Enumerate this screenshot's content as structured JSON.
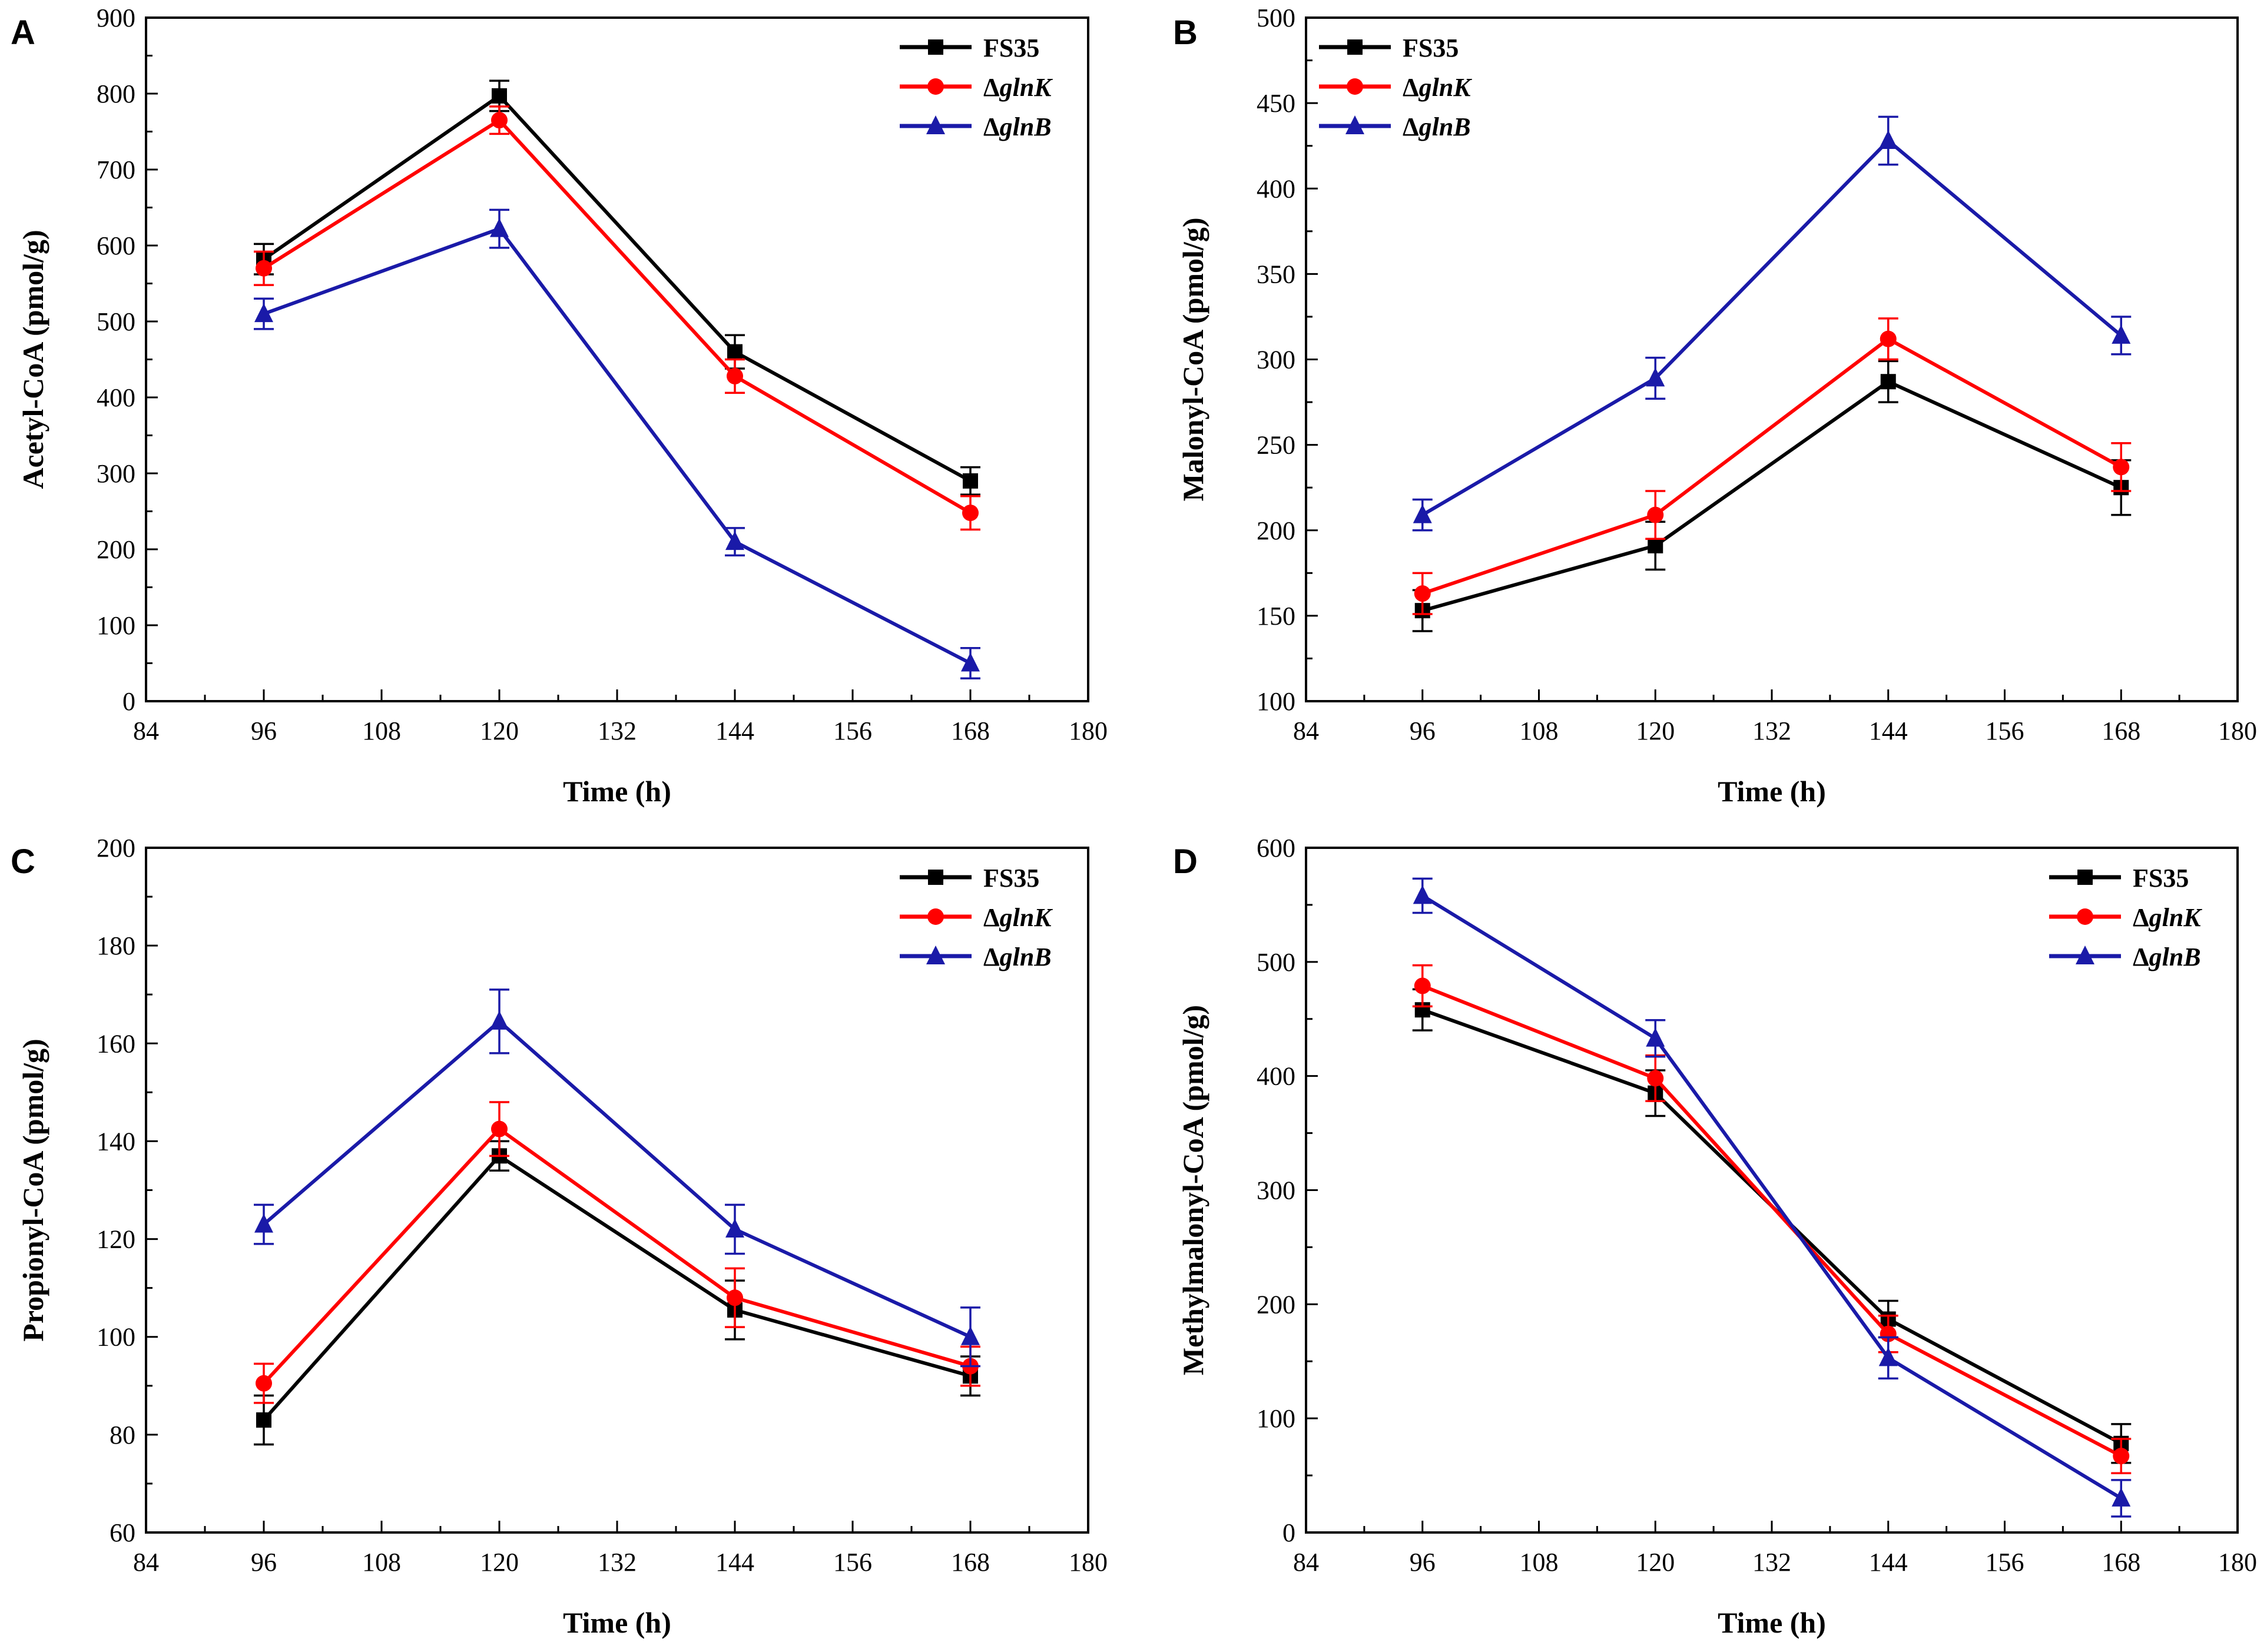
{
  "colors": {
    "FS35": "#000000",
    "glnK": "#ff0000",
    "glnB": "#1a1aa8",
    "axis": "#000000"
  },
  "chart_data": [
    {
      "panel": "A",
      "type": "line",
      "xlabel": "Time (h)",
      "ylabel": "Acetyl-CoA (pmol/g)",
      "xlim": [
        84,
        180
      ],
      "ylim": [
        0,
        900
      ],
      "xticks": [
        84,
        96,
        108,
        120,
        132,
        144,
        156,
        168,
        180
      ],
      "yticks": [
        0,
        100,
        200,
        300,
        400,
        500,
        600,
        700,
        800,
        900
      ],
      "x": [
        96,
        120,
        144,
        168
      ],
      "legend_position": "top-right",
      "series": [
        {
          "key": "FS35",
          "name": "FS35",
          "prefix": "",
          "italic": "",
          "marker": "square",
          "values": [
            582,
            797,
            460,
            290
          ],
          "errors": [
            20,
            20,
            22,
            18
          ]
        },
        {
          "key": "glnK",
          "name": "ΔglnK",
          "prefix": "Δ",
          "italic": "glnK",
          "marker": "circle",
          "values": [
            570,
            765,
            428,
            248
          ],
          "errors": [
            22,
            18,
            22,
            22
          ]
        },
        {
          "key": "glnB",
          "name": "ΔglnB",
          "prefix": "Δ",
          "italic": "glnB",
          "marker": "triangle",
          "values": [
            510,
            622,
            210,
            50
          ],
          "errors": [
            20,
            25,
            18,
            20
          ]
        }
      ]
    },
    {
      "panel": "B",
      "type": "line",
      "xlabel": "Time (h)",
      "ylabel": "Malonyl-CoA (pmol/g)",
      "xlim": [
        84,
        180
      ],
      "ylim": [
        100,
        500
      ],
      "xticks": [
        84,
        96,
        108,
        120,
        132,
        144,
        156,
        168,
        180
      ],
      "yticks": [
        100,
        150,
        200,
        250,
        300,
        350,
        400,
        450,
        500
      ],
      "x": [
        96,
        120,
        144,
        168
      ],
      "legend_position": "top-left",
      "series": [
        {
          "key": "FS35",
          "name": "FS35",
          "prefix": "",
          "italic": "",
          "marker": "square",
          "values": [
            153,
            191,
            287,
            225
          ],
          "errors": [
            12,
            14,
            12,
            16
          ]
        },
        {
          "key": "glnK",
          "name": "ΔglnK",
          "prefix": "Δ",
          "italic": "glnK",
          "marker": "circle",
          "values": [
            163,
            209,
            312,
            237
          ],
          "errors": [
            12,
            14,
            12,
            14
          ]
        },
        {
          "key": "glnB",
          "name": "ΔglnB",
          "prefix": "Δ",
          "italic": "glnB",
          "marker": "triangle",
          "values": [
            209,
            289,
            428,
            314
          ],
          "errors": [
            9,
            12,
            14,
            11
          ]
        }
      ]
    },
    {
      "panel": "C",
      "type": "line",
      "xlabel": "Time (h)",
      "ylabel": "Propionyl-CoA (pmol/g)",
      "xlim": [
        84,
        180
      ],
      "ylim": [
        60,
        200
      ],
      "xticks": [
        84,
        96,
        108,
        120,
        132,
        144,
        156,
        168,
        180
      ],
      "yticks": [
        60,
        80,
        100,
        120,
        140,
        160,
        180,
        200
      ],
      "x": [
        96,
        120,
        144,
        168
      ],
      "legend_position": "top-right",
      "series": [
        {
          "key": "FS35",
          "name": "FS35",
          "prefix": "",
          "italic": "",
          "marker": "square",
          "values": [
            83,
            137,
            105.5,
            92
          ],
          "errors": [
            5,
            3,
            6,
            4
          ]
        },
        {
          "key": "glnK",
          "name": "ΔglnK",
          "prefix": "Δ",
          "italic": "glnK",
          "marker": "circle",
          "values": [
            90.5,
            142.5,
            108,
            94
          ],
          "errors": [
            4,
            5.5,
            6,
            4
          ]
        },
        {
          "key": "glnB",
          "name": "ΔglnB",
          "prefix": "Δ",
          "italic": "glnB",
          "marker": "triangle",
          "values": [
            123,
            164.5,
            122,
            100
          ],
          "errors": [
            4,
            6.5,
            5,
            6
          ]
        }
      ]
    },
    {
      "panel": "D",
      "type": "line",
      "xlabel": "Time (h)",
      "ylabel": "Methylmalonyl-CoA (pmol/g)",
      "xlim": [
        84,
        180
      ],
      "ylim": [
        0,
        600
      ],
      "xticks": [
        84,
        96,
        108,
        120,
        132,
        144,
        156,
        168,
        180
      ],
      "yticks": [
        0,
        100,
        200,
        300,
        400,
        500,
        600
      ],
      "x": [
        96,
        120,
        144,
        168
      ],
      "legend_position": "top-right",
      "series": [
        {
          "key": "FS35",
          "name": "FS35",
          "prefix": "",
          "italic": "",
          "marker": "square",
          "values": [
            458,
            385,
            187,
            78
          ],
          "errors": [
            18,
            20,
            16,
            17
          ]
        },
        {
          "key": "glnK",
          "name": "ΔglnK",
          "prefix": "Δ",
          "italic": "glnK",
          "marker": "circle",
          "values": [
            479,
            398,
            174,
            67
          ],
          "errors": [
            18,
            20,
            16,
            15
          ]
        },
        {
          "key": "glnB",
          "name": "ΔglnB",
          "prefix": "Δ",
          "italic": "glnB",
          "marker": "triangle",
          "values": [
            558,
            433,
            153,
            30
          ],
          "errors": [
            15,
            16,
            18,
            16
          ]
        }
      ]
    }
  ]
}
